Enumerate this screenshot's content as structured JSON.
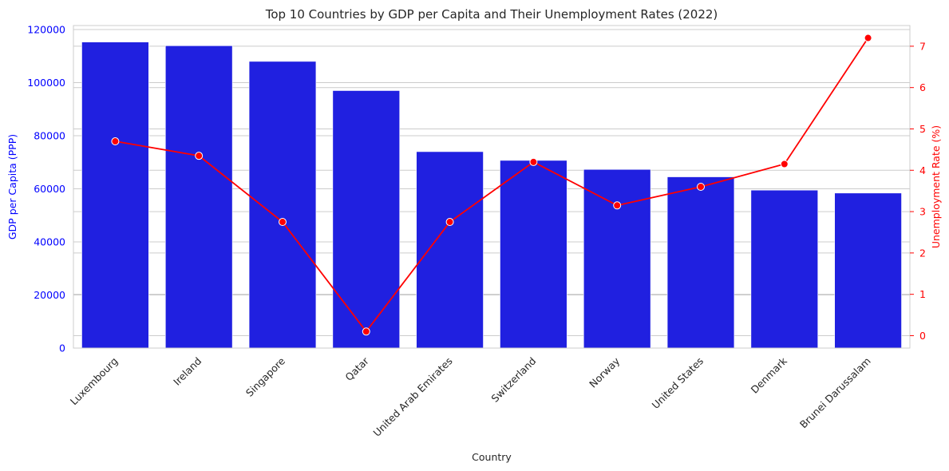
{
  "chart_data": {
    "type": "bar",
    "title": "Top 10 Countries by GDP per Capita and Their Unemployment Rates (2022)",
    "xlabel": "Country",
    "ylabel": "GDP per Capita (PPP)",
    "y2label": "Unemployment Rate (%)",
    "categories": [
      "Luxembourg",
      "Ireland",
      "Singapore",
      "Qatar",
      "United Arab Emirates",
      "Switzerland",
      "Norway",
      "United States",
      "Denmark",
      "Brunei Darussalam"
    ],
    "series": [
      {
        "type": "bar",
        "axis": "left",
        "color": "#2020e0",
        "values": [
          115300,
          113900,
          108000,
          97000,
          74000,
          70700,
          67300,
          64500,
          59500,
          58400
        ]
      },
      {
        "type": "line",
        "axis": "right",
        "color": "#ff0000",
        "values": [
          4.7,
          4.35,
          2.75,
          0.1,
          2.75,
          4.2,
          3.15,
          3.6,
          4.15,
          7.2
        ]
      }
    ],
    "ylim": [
      0,
      120000
    ],
    "y2lim": [
      -0.3,
      7.5
    ],
    "yticks": [
      0,
      20000,
      40000,
      60000,
      80000,
      100000,
      120000
    ],
    "y2ticks": [
      0,
      1,
      2,
      3,
      4,
      5,
      6,
      7
    ],
    "left_axis_color": "#0000ff",
    "right_axis_color": "#ff0000",
    "grid": true
  }
}
